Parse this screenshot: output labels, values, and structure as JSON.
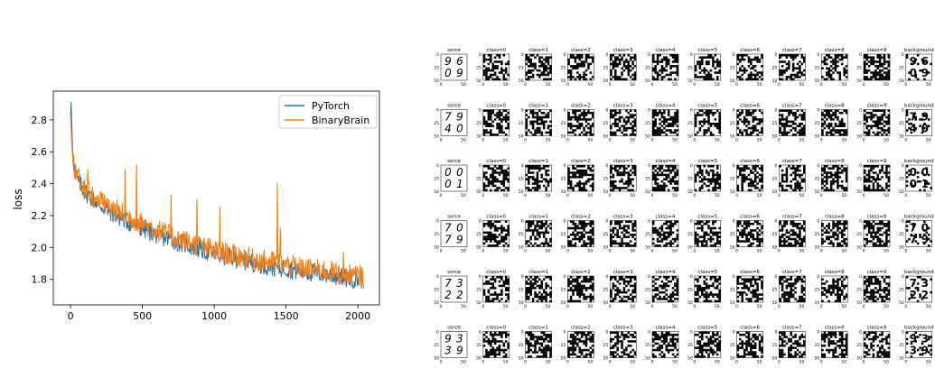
{
  "loss_plot": {
    "ylabel": "loss",
    "legend": [
      "PyTorch",
      "BinaryBrain"
    ]
  },
  "segmentation_grid": {
    "column_titles": [
      "sorce",
      "class=0",
      "class=1",
      "class=2",
      "class=3",
      "class=4",
      "class=5",
      "class=6",
      "class=7",
      "class=8",
      "class=9",
      "background"
    ],
    "row_digits": [
      [
        "9",
        "6",
        "0",
        "9"
      ],
      [
        "7",
        "9",
        "4",
        "0"
      ],
      [
        "0",
        "0",
        "0",
        "1"
      ],
      [
        "7",
        "0",
        "7",
        "9"
      ],
      [
        "7",
        "3",
        "2",
        "2"
      ],
      [
        "9",
        "3",
        "3",
        "9"
      ]
    ],
    "tick_labels_y": [
      "0",
      "25",
      "50"
    ],
    "tick_labels_x": [
      "0",
      "50"
    ]
  },
  "chart_data": [
    {
      "type": "line",
      "title": "",
      "xlabel": "",
      "ylabel": "loss",
      "xlim": [
        -120,
        2150
      ],
      "ylim": [
        1.64,
        2.98
      ],
      "xticks": [
        0,
        500,
        1000,
        1500,
        2000
      ],
      "yticks": [
        1.8,
        2.0,
        2.2,
        2.4,
        2.6,
        2.8
      ],
      "grid": false,
      "legend_position": "top-right",
      "series": [
        {
          "name": "PyTorch",
          "color": "#1f77b4",
          "x_range": [
            0,
            2040
          ],
          "points": [
            [
              0,
              2.82
            ],
            [
              5,
              2.93
            ],
            [
              10,
              2.7
            ],
            [
              20,
              2.55
            ],
            [
              30,
              2.48
            ],
            [
              50,
              2.42
            ],
            [
              100,
              2.35
            ],
            [
              150,
              2.31
            ],
            [
              200,
              2.27
            ],
            [
              300,
              2.21
            ],
            [
              400,
              2.16
            ],
            [
              500,
              2.12
            ],
            [
              600,
              2.08
            ],
            [
              700,
              2.05
            ],
            [
              800,
              2.02
            ],
            [
              900,
              1.99
            ],
            [
              1000,
              1.96
            ],
            [
              1100,
              1.94
            ],
            [
              1200,
              1.92
            ],
            [
              1300,
              1.9
            ],
            [
              1400,
              1.88
            ],
            [
              1500,
              1.87
            ],
            [
              1600,
              1.85
            ],
            [
              1700,
              1.84
            ],
            [
              1800,
              1.83
            ],
            [
              1900,
              1.81
            ],
            [
              2000,
              1.8
            ],
            [
              2040,
              1.8
            ]
          ],
          "noise_amplitude": 0.06
        },
        {
          "name": "BinaryBrain",
          "color": "#ff7f0e",
          "x_range": [
            0,
            2040
          ],
          "points": [
            [
              0,
              2.84
            ],
            [
              10,
              2.62
            ],
            [
              20,
              2.56
            ],
            [
              30,
              2.5
            ],
            [
              50,
              2.44
            ],
            [
              100,
              2.37
            ],
            [
              150,
              2.33
            ],
            [
              200,
              2.29
            ],
            [
              300,
              2.24
            ],
            [
              400,
              2.19
            ],
            [
              500,
              2.15
            ],
            [
              600,
              2.11
            ],
            [
              700,
              2.07
            ],
            [
              800,
              2.04
            ],
            [
              900,
              2.01
            ],
            [
              1000,
              1.98
            ],
            [
              1100,
              1.96
            ],
            [
              1200,
              1.94
            ],
            [
              1300,
              1.92
            ],
            [
              1400,
              1.91
            ],
            [
              1500,
              1.89
            ],
            [
              1600,
              1.87
            ],
            [
              1700,
              1.86
            ],
            [
              1800,
              1.85
            ],
            [
              1900,
              1.83
            ],
            [
              2000,
              1.82
            ],
            [
              2040,
              1.82
            ]
          ],
          "spikes": [
            [
              120,
              2.49
            ],
            [
              380,
              2.49
            ],
            [
              460,
              2.52
            ],
            [
              700,
              2.33
            ],
            [
              880,
              2.3
            ],
            [
              1040,
              2.25
            ],
            [
              1440,
              2.4
            ],
            [
              1460,
              2.12
            ],
            [
              1900,
              1.97
            ]
          ],
          "noise_amplitude": 0.07
        }
      ]
    }
  ]
}
